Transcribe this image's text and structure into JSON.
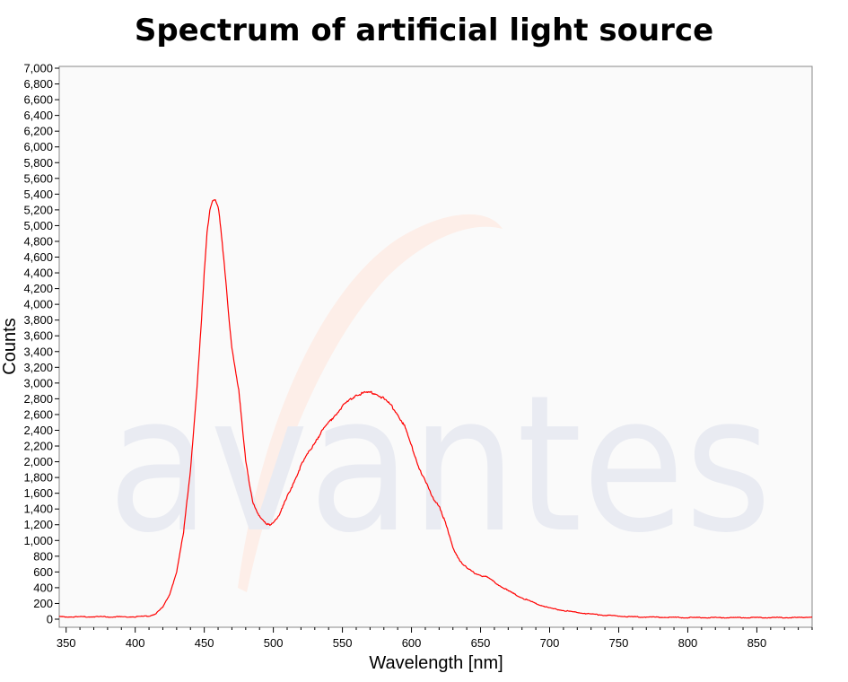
{
  "chart_data": {
    "type": "line",
    "title": "Spectrum of artificial light source",
    "xlabel": "Wavelength [nm]",
    "ylabel": "Counts",
    "xlim": [
      345,
      890
    ],
    "ylim": [
      -200,
      7000
    ],
    "x_ticks": [
      350,
      400,
      450,
      500,
      550,
      600,
      650,
      700,
      750,
      800,
      850
    ],
    "y_ticks": [
      0,
      200,
      400,
      600,
      800,
      1000,
      1200,
      1400,
      1600,
      1800,
      2000,
      2200,
      2400,
      2600,
      2800,
      3000,
      3200,
      3400,
      3600,
      3800,
      4000,
      4200,
      4400,
      4600,
      4800,
      5000,
      5200,
      5400,
      5600,
      5800,
      6000,
      6200,
      6400,
      6600,
      6800,
      7000
    ],
    "grid": false,
    "watermark": "avantes",
    "series": [
      {
        "color": "#ff0000",
        "x": [
          345,
          360,
          380,
          400,
          410,
          415,
          420,
          425,
          430,
          435,
          440,
          445,
          448,
          450,
          452,
          454,
          456,
          458,
          460,
          462,
          465,
          468,
          470,
          475,
          480,
          485,
          490,
          495,
          497,
          500,
          505,
          510,
          515,
          520,
          525,
          530,
          535,
          540,
          545,
          550,
          555,
          560,
          565,
          570,
          575,
          580,
          585,
          590,
          595,
          600,
          605,
          610,
          615,
          620,
          625,
          630,
          635,
          640,
          645,
          650,
          655,
          660,
          670,
          680,
          690,
          700,
          710,
          720,
          730,
          740,
          750,
          760,
          780,
          800,
          820,
          840,
          860,
          880,
          890
        ],
        "y": [
          30,
          30,
          30,
          30,
          40,
          70,
          150,
          320,
          600,
          1100,
          1900,
          3000,
          3800,
          4400,
          4900,
          5200,
          5330,
          5340,
          5250,
          4950,
          4400,
          3800,
          3450,
          2900,
          2000,
          1500,
          1300,
          1200,
          1200,
          1230,
          1350,
          1550,
          1750,
          1950,
          2100,
          2250,
          2380,
          2500,
          2600,
          2700,
          2780,
          2850,
          2870,
          2880,
          2860,
          2800,
          2720,
          2600,
          2450,
          2200,
          1950,
          1750,
          1550,
          1450,
          1200,
          900,
          750,
          650,
          590,
          560,
          530,
          470,
          360,
          270,
          200,
          140,
          110,
          85,
          65,
          50,
          40,
          30,
          25,
          20,
          20,
          20,
          20,
          20,
          30
        ]
      }
    ]
  }
}
